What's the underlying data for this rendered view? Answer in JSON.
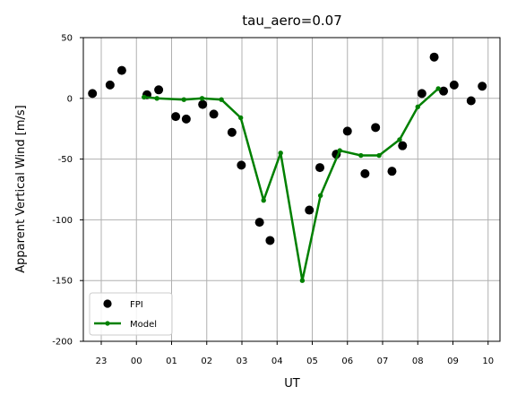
{
  "chart_data": {
    "type": "scatter",
    "title": "tau_aero=0.07",
    "xlabel": "UT",
    "ylabel": "Apparent Vertical Wind [m/s]",
    "ylim": [
      -200,
      50
    ],
    "x_tick_labels": [
      "23",
      "00",
      "01",
      "02",
      "03",
      "04",
      "05",
      "06",
      "07",
      "08",
      "09",
      "10"
    ],
    "y_ticks": [
      50,
      0,
      -50,
      -100,
      -150,
      -200
    ],
    "grid": true,
    "legend_position": "lower-left",
    "series": [
      {
        "name": "FPI",
        "style": "markers",
        "color": "#000000",
        "points": [
          [
            "22:45",
            4
          ],
          [
            "23:15",
            11
          ],
          [
            "23:35",
            23
          ],
          [
            "00:18",
            3
          ],
          [
            "00:38",
            7
          ],
          [
            "01:07",
            -15
          ],
          [
            "01:25",
            -17
          ],
          [
            "01:53",
            -5
          ],
          [
            "02:12",
            -13
          ],
          [
            "02:43",
            -28
          ],
          [
            "02:59",
            -55
          ],
          [
            "03:30",
            -102
          ],
          [
            "03:48",
            -117
          ],
          [
            "04:55",
            -92
          ],
          [
            "05:13",
            -57
          ],
          [
            "05:41",
            -46
          ],
          [
            "06:00",
            -27
          ],
          [
            "06:30",
            -62
          ],
          [
            "06:48",
            -24
          ],
          [
            "07:16",
            -60
          ],
          [
            "07:34",
            -39
          ],
          [
            "08:07",
            4
          ],
          [
            "08:28",
            34
          ],
          [
            "08:44",
            6
          ],
          [
            "09:02",
            11
          ],
          [
            "09:31",
            -2
          ],
          [
            "09:50",
            10
          ]
        ]
      },
      {
        "name": "Model",
        "style": "line-markers",
        "color": "#008000",
        "points": [
          [
            "00:13",
            1
          ],
          [
            "00:35",
            0
          ],
          [
            "01:21",
            -1
          ],
          [
            "01:52",
            0
          ],
          [
            "02:25",
            -1
          ],
          [
            "02:58",
            -16
          ],
          [
            "03:37",
            -84
          ],
          [
            "04:06",
            -45
          ],
          [
            "04:43",
            -150
          ],
          [
            "05:14",
            -80
          ],
          [
            "05:47",
            -43
          ],
          [
            "06:23",
            -47
          ],
          [
            "06:54",
            -47
          ],
          [
            "07:29",
            -34
          ],
          [
            "08:00",
            -7
          ],
          [
            "08:35",
            8
          ]
        ]
      }
    ]
  },
  "legend": {
    "fpi_label": "FPI",
    "model_label": "Model"
  }
}
